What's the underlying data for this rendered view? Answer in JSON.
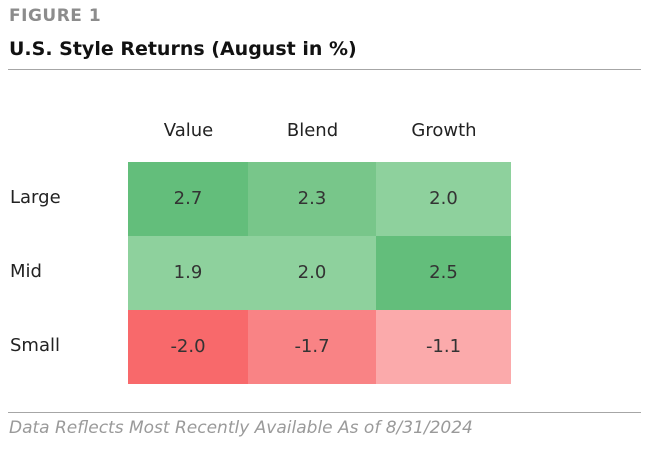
{
  "header": {
    "figure_label": "FIGURE 1",
    "title": "U.S. Style Returns (August in %)"
  },
  "chart_data": {
    "type": "heatmap",
    "title": "U.S. Style Returns (August in %)",
    "columns": [
      "Value",
      "Blend",
      "Growth"
    ],
    "rows": [
      "Large",
      "Mid",
      "Small"
    ],
    "values": [
      [
        2.7,
        2.3,
        2.0
      ],
      [
        1.9,
        2.0,
        2.5
      ],
      [
        -2.0,
        -1.7,
        -1.1
      ]
    ],
    "labels": [
      [
        "2.7",
        "2.3",
        "2.0"
      ],
      [
        "1.9",
        "2.0",
        "2.5"
      ],
      [
        "-2.0",
        "-1.7",
        "-1.1"
      ]
    ],
    "colors": {
      "strong_positive": "#63be7b",
      "mid_positive": "#78c68a",
      "light_positive": "#8ed19d",
      "strong_negative": "#f8696b",
      "mid_negative": "#f98385",
      "light_negative": "#fbaaab"
    }
  },
  "footer": {
    "note": "Data Reflects Most Recently Available As of 8/31/2024"
  }
}
